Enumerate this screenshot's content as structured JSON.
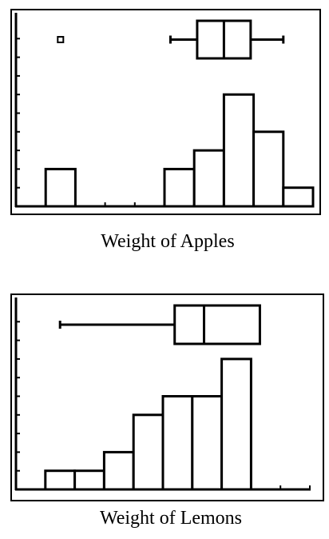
{
  "colors": {
    "ink": "#000000",
    "paper": "#ffffff"
  },
  "chart_data": [
    {
      "type": "histogram with box plot",
      "title": "Weight of Apples",
      "xlabel": "",
      "ylabel": "",
      "grid": false,
      "x_ticks": 10,
      "y_ticks": 10,
      "bin_start": 1,
      "bin_width": 1,
      "y_max": 10,
      "frequencies": [
        2,
        0,
        0,
        0,
        2,
        3,
        6,
        4,
        1
      ],
      "boxplot": {
        "min": 5.2,
        "q1": 6.1,
        "median": 7.0,
        "q3": 7.9,
        "max": 9.0,
        "outliers": [
          1.5
        ]
      }
    },
    {
      "type": "histogram with box plot",
      "title": "Weight of Lemons",
      "xlabel": "",
      "ylabel": "",
      "grid": false,
      "x_ticks": 10,
      "y_ticks": 10,
      "bin_start": 1,
      "bin_width": 1,
      "y_max": 10,
      "frequencies": [
        1,
        1,
        2,
        4,
        5,
        5,
        7
      ],
      "boxplot": {
        "min": 1.5,
        "q1": 5.4,
        "median": 6.4,
        "q3": 8.3,
        "max": 8.3,
        "outliers": []
      }
    }
  ]
}
